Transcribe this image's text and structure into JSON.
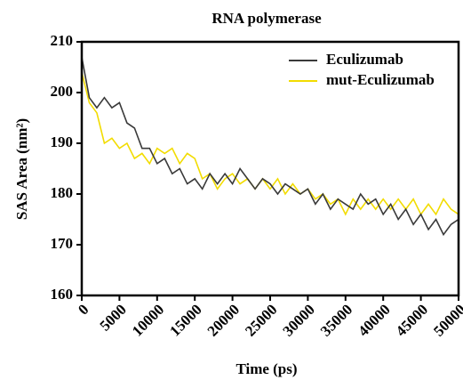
{
  "chart_data": {
    "type": "line",
    "title": "RNA polymerase",
    "xlabel": "Time (ps)",
    "ylabel": "SAS Area (nm²)",
    "x": [
      0,
      1000,
      2000,
      3000,
      4000,
      5000,
      6000,
      7000,
      8000,
      9000,
      10000,
      11000,
      12000,
      13000,
      14000,
      15000,
      16000,
      17000,
      18000,
      19000,
      20000,
      21000,
      22000,
      23000,
      24000,
      25000,
      26000,
      27000,
      28000,
      29000,
      30000,
      31000,
      32000,
      33000,
      34000,
      35000,
      36000,
      37000,
      38000,
      39000,
      40000,
      41000,
      42000,
      43000,
      44000,
      45000,
      46000,
      47000,
      48000,
      49000,
      50000
    ],
    "series": [
      {
        "name": "Eculizumab",
        "color": "#3a3a3a",
        "values": [
          207,
          199,
          197,
          199,
          197,
          198,
          194,
          193,
          189,
          189,
          186,
          187,
          184,
          185,
          182,
          183,
          181,
          184,
          182,
          184,
          182,
          185,
          183,
          181,
          183,
          182,
          180,
          182,
          181,
          180,
          181,
          178,
          180,
          177,
          179,
          178,
          177,
          180,
          178,
          179,
          176,
          178,
          175,
          177,
          174,
          176,
          173,
          175,
          172,
          174,
          175
        ]
      },
      {
        "name": "mut-Eculizumab",
        "color": "#f2dc00",
        "values": [
          204,
          198,
          196,
          190,
          191,
          189,
          190,
          187,
          188,
          186,
          189,
          188,
          189,
          186,
          188,
          187,
          183,
          184,
          181,
          183,
          184,
          182,
          183,
          181,
          183,
          181,
          183,
          180,
          182,
          180,
          181,
          179,
          180,
          178,
          179,
          176,
          179,
          177,
          179,
          177,
          179,
          177,
          179,
          177,
          179,
          176,
          178,
          176,
          179,
          177,
          176
        ]
      }
    ],
    "xlim": [
      0,
      50000
    ],
    "ylim": [
      160,
      210
    ],
    "xticks": [
      0,
      5000,
      10000,
      15000,
      20000,
      25000,
      30000,
      35000,
      40000,
      45000,
      50000
    ],
    "yticks": [
      160,
      170,
      180,
      190,
      200,
      210
    ],
    "legend": "upper right"
  }
}
